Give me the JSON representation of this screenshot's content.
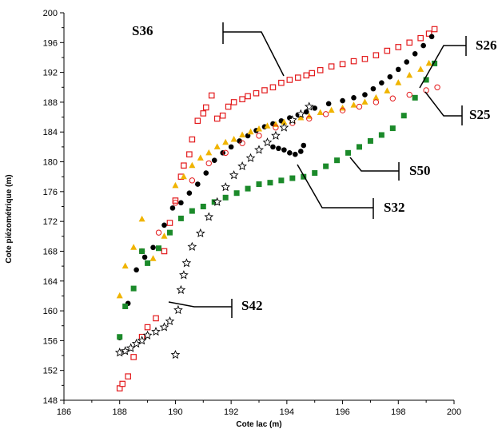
{
  "chart_data": {
    "type": "scatter",
    "xlabel": "Cote lac (m)",
    "ylabel": "Cote piézométrique (m)",
    "xlim": [
      186,
      200
    ],
    "ylim": [
      148,
      200
    ],
    "xticks": [
      186,
      188,
      190,
      192,
      194,
      196,
      198,
      200
    ],
    "yticks": [
      148,
      152,
      156,
      160,
      164,
      168,
      172,
      176,
      180,
      184,
      188,
      192,
      196,
      200
    ],
    "grid": false,
    "colors": {
      "S36": "#e31a1c",
      "S26": "#000000",
      "S25": "#f0b400",
      "S50": "#1b8a2a",
      "S32": "#000000",
      "S42": "#000000",
      "S25_circle": "#e31a1c"
    },
    "series": [
      {
        "name": "S36",
        "marker": "open-square",
        "x": [
          188.0,
          188.1,
          188.3,
          188.5,
          188.8,
          189.0,
          189.3,
          189.6,
          189.8,
          190.0,
          190.2,
          190.3,
          190.5,
          190.6,
          190.8,
          191.0,
          191.1,
          191.3,
          191.5,
          191.7,
          191.9,
          192.1,
          192.4,
          192.6,
          192.9,
          193.2,
          193.5,
          193.8,
          194.1,
          194.4,
          194.7,
          194.9,
          195.2,
          195.6,
          196.0,
          196.4,
          196.8,
          197.2,
          197.6,
          198.0,
          198.4,
          198.8,
          199.1,
          199.3
        ],
        "y": [
          149.6,
          150.2,
          151.2,
          153.8,
          156.5,
          157.8,
          159.0,
          168.0,
          171.8,
          174.8,
          178.0,
          179.5,
          181.0,
          183.0,
          185.5,
          186.5,
          187.3,
          188.9,
          185.8,
          186.2,
          187.4,
          188.0,
          188.4,
          188.8,
          189.2,
          189.6,
          190.0,
          190.6,
          191.0,
          191.3,
          191.6,
          191.9,
          192.3,
          192.8,
          193.1,
          193.5,
          193.8,
          194.3,
          194.9,
          195.4,
          196.0,
          196.6,
          197.2,
          197.8
        ]
      },
      {
        "name": "S26",
        "marker": "filled-circle",
        "x": [
          188.0,
          188.3,
          188.6,
          188.9,
          189.2,
          189.6,
          189.9,
          190.2,
          190.5,
          190.8,
          191.1,
          191.4,
          191.7,
          192.0,
          192.3,
          192.6,
          192.9,
          193.2,
          193.5,
          193.8,
          194.1,
          194.4,
          194.7,
          195.0,
          195.5,
          196.0,
          196.4,
          196.8,
          197.1,
          197.4,
          197.7,
          198.0,
          198.3,
          198.6,
          198.9,
          199.2
        ],
        "y": [
          156.4,
          161.0,
          165.5,
          167.2,
          168.5,
          171.5,
          173.8,
          174.5,
          175.8,
          177.0,
          178.5,
          180.2,
          181.2,
          182.0,
          182.8,
          183.5,
          184.2,
          184.7,
          185.1,
          185.5,
          185.9,
          186.3,
          186.7,
          187.2,
          187.8,
          188.2,
          188.6,
          189.0,
          189.8,
          190.6,
          191.4,
          192.4,
          193.4,
          194.5,
          195.6,
          196.8
        ]
      },
      {
        "name": "S25",
        "marker": "filled-triangle",
        "x": [
          188.0,
          188.2,
          188.5,
          188.8,
          189.2,
          189.6,
          190.0,
          190.3,
          190.6,
          190.9,
          191.2,
          191.5,
          191.8,
          192.1,
          192.4,
          192.7,
          193.0,
          193.3,
          193.6,
          193.9,
          194.2,
          194.5,
          194.8,
          195.2,
          195.6,
          196.0,
          196.4,
          196.8,
          197.2,
          197.6,
          198.0,
          198.4,
          198.8,
          199.1
        ],
        "y": [
          162.0,
          166.0,
          168.5,
          172.3,
          167.0,
          170.0,
          176.8,
          178.0,
          179.5,
          180.5,
          181.2,
          182.0,
          182.6,
          183.0,
          183.6,
          184.0,
          184.4,
          184.8,
          185.0,
          185.3,
          185.6,
          185.9,
          186.1,
          186.6,
          186.9,
          187.2,
          187.6,
          188.0,
          188.6,
          189.5,
          190.6,
          191.6,
          192.4,
          193.2
        ]
      },
      {
        "name": "S25 (circles)",
        "marker": "open-circle",
        "x": [
          188.8,
          189.4,
          190.0,
          190.6,
          191.2,
          191.8,
          192.4,
          193.0,
          193.6,
          194.2,
          194.8,
          195.4,
          196.0,
          196.6,
          197.2,
          197.8,
          198.4,
          199.0,
          199.4
        ],
        "y": [
          168.0,
          170.5,
          174.5,
          177.5,
          179.8,
          181.2,
          182.5,
          183.5,
          184.6,
          185.2,
          185.8,
          186.4,
          186.9,
          187.4,
          188.0,
          188.5,
          189.0,
          189.6,
          190.0
        ]
      },
      {
        "name": "S50",
        "marker": "filled-square",
        "x": [
          188.0,
          188.2,
          188.5,
          188.8,
          189.0,
          189.4,
          189.8,
          190.2,
          190.6,
          191.0,
          191.4,
          191.8,
          192.2,
          192.6,
          193.0,
          193.4,
          193.8,
          194.2,
          194.6,
          195.0,
          195.4,
          195.8,
          196.2,
          196.6,
          197.0,
          197.4,
          197.8,
          198.2,
          198.6,
          199.0,
          199.3
        ],
        "y": [
          156.5,
          160.6,
          163.0,
          168.0,
          166.4,
          168.4,
          170.5,
          172.4,
          173.4,
          174.0,
          174.6,
          175.2,
          175.8,
          176.4,
          177.0,
          177.2,
          177.5,
          177.8,
          178.0,
          178.5,
          179.4,
          180.2,
          181.2,
          182.0,
          182.8,
          183.6,
          184.5,
          186.2,
          188.6,
          191.0,
          193.2
        ]
      },
      {
        "name": "S32",
        "marker": "filled-circle",
        "x": [
          193.5,
          193.7,
          193.9,
          194.1,
          194.3,
          194.5,
          194.6
        ],
        "y": [
          182.0,
          181.8,
          181.6,
          181.2,
          181.0,
          181.4,
          182.2
        ]
      },
      {
        "name": "S42",
        "marker": "open-star",
        "x": [
          188.0,
          188.2,
          188.4,
          188.6,
          188.8,
          189.0,
          189.3,
          189.6,
          189.8,
          190.0,
          190.1,
          190.2,
          190.3,
          190.4,
          190.6,
          190.9,
          191.2,
          191.5,
          191.8,
          192.1,
          192.4,
          192.7,
          193.0,
          193.3,
          193.6,
          193.9,
          194.2,
          194.5,
          194.8
        ],
        "y": [
          154.4,
          154.6,
          155.0,
          155.6,
          156.0,
          156.7,
          157.2,
          157.8,
          158.6,
          154.1,
          160.1,
          162.8,
          164.8,
          166.4,
          168.6,
          170.4,
          172.6,
          174.6,
          176.6,
          178.2,
          179.4,
          180.5,
          181.6,
          182.6,
          183.5,
          184.6,
          185.6,
          186.4,
          187.4
        ]
      }
    ],
    "annotations": [
      "S36",
      "S26",
      "S25",
      "S50",
      "S32",
      "S42"
    ]
  }
}
